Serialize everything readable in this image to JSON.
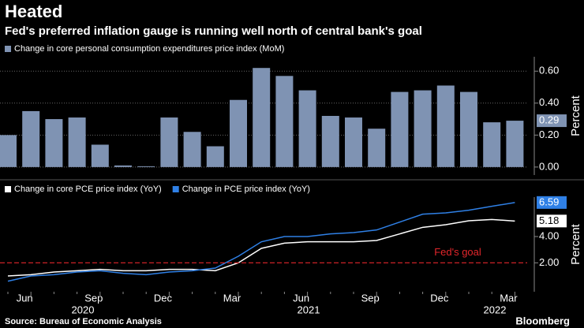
{
  "title": "Heated",
  "subtitle": "Fed's preferred inflation gauge is running well north of central bank's goal",
  "source": "Source: Bureau of Economic Analysis",
  "brand": "Bloomberg",
  "chart_data": [
    {
      "type": "bar",
      "y_label": "Percent",
      "ylim": [
        -0.05,
        0.69
      ],
      "yticks": [
        {
          "value": 0,
          "label": "0.00"
        },
        {
          "value": 0.2,
          "label": "0.20"
        },
        {
          "value": 0.4,
          "label": "0.40"
        },
        {
          "value": 0.6,
          "label": "0.60"
        }
      ],
      "grid": true,
      "series": [
        {
          "name": "Change in core personal consumption expenditures price index (MoM)",
          "color": "#7f93b3",
          "values": [
            0.2,
            0.35,
            0.3,
            0.31,
            0.14,
            0.01,
            0.005,
            0.31,
            0.22,
            0.13,
            0.42,
            0.62,
            0.57,
            0.48,
            0.32,
            0.31,
            0.24,
            0.47,
            0.48,
            0.51,
            0.47,
            0.28,
            0.29
          ]
        }
      ]
    },
    {
      "type": "line",
      "y_label": "Percent",
      "ylim": [
        -0.2,
        7.0
      ],
      "yticks": [
        {
          "value": 2,
          "label": "2.00"
        },
        {
          "value": 4,
          "label": "4.00"
        }
      ],
      "categories": [
        null,
        "Jun",
        null,
        null,
        "Sep",
        null,
        null,
        "Dec",
        null,
        null,
        "Mar",
        null,
        null,
        "Jun",
        null,
        null,
        "Sep",
        null,
        null,
        "Dec",
        null,
        null,
        "Mar"
      ],
      "years": [
        "2020",
        "2021",
        "2022"
      ],
      "annotation": {
        "label": "Fed's goal",
        "value": 2,
        "color": "#e3262b"
      },
      "series": [
        {
          "name": "Change in core PCE price index (YoY)",
          "color": "#ffffff",
          "values": [
            1.0,
            1.1,
            1.3,
            1.4,
            1.5,
            1.4,
            1.4,
            1.5,
            1.5,
            1.4,
            2.0,
            3.1,
            3.5,
            3.6,
            3.6,
            3.6,
            3.7,
            4.2,
            4.7,
            4.9,
            5.2,
            5.3,
            5.18
          ]
        },
        {
          "name": "Change in PCE price index (YoY)",
          "color": "#2f80e6",
          "values": [
            0.6,
            1.0,
            1.1,
            1.3,
            1.4,
            1.2,
            1.1,
            1.3,
            1.4,
            1.6,
            2.5,
            3.6,
            4.0,
            4.0,
            4.2,
            4.3,
            4.5,
            5.1,
            5.7,
            5.8,
            6.0,
            6.3,
            6.59
          ]
        }
      ]
    }
  ]
}
